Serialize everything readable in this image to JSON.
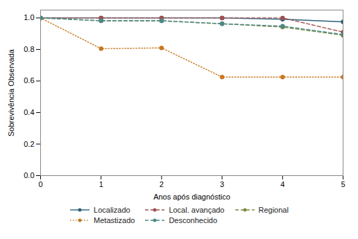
{
  "chart_data": {
    "type": "line",
    "xlabel": "Anos após diagnóstico",
    "ylabel": "Sobrevivência Observada",
    "x": [
      0,
      1,
      2,
      3,
      4,
      5
    ],
    "xlim": [
      0,
      5
    ],
    "ylim": [
      0.0,
      1.05
    ],
    "xticks": [
      0,
      1,
      2,
      3,
      4,
      5
    ],
    "yticks": [
      {
        "value": 0.0,
        "label": "0.0"
      },
      0.2,
      0.4,
      0.6,
      0.8,
      {
        "value": 1.0,
        "label": "1.0"
      }
    ],
    "grid": false,
    "legend": "bottom",
    "series": [
      {
        "name": "Localizado",
        "color": "#2b5f7a",
        "line_style": "solid",
        "marker": "circle",
        "values": [
          1.0,
          1.0,
          1.0,
          1.0,
          0.992,
          0.975
        ]
      },
      {
        "name": "Local. avançado",
        "color": "#a05050",
        "line_style": "dashed",
        "marker": "circle",
        "values": [
          1.0,
          1.0,
          1.0,
          1.0,
          1.0,
          0.91
        ]
      },
      {
        "name": "Regional",
        "color": "#7a8c45",
        "line_style": "dashed",
        "marker": "circle",
        "values": [
          1.0,
          0.982,
          0.982,
          0.963,
          0.942,
          0.89
        ]
      },
      {
        "name": "Metastizado",
        "color": "#c87820",
        "line_style": "dotted",
        "marker": "circle",
        "values": [
          1.0,
          0.805,
          0.81,
          0.625,
          0.625,
          0.625
        ]
      },
      {
        "name": "Desconhecido",
        "color": "#4d8888",
        "line_style": "dashed",
        "marker": "circle",
        "values": [
          1.0,
          0.982,
          0.982,
          0.963,
          0.948,
          0.895
        ]
      }
    ]
  }
}
